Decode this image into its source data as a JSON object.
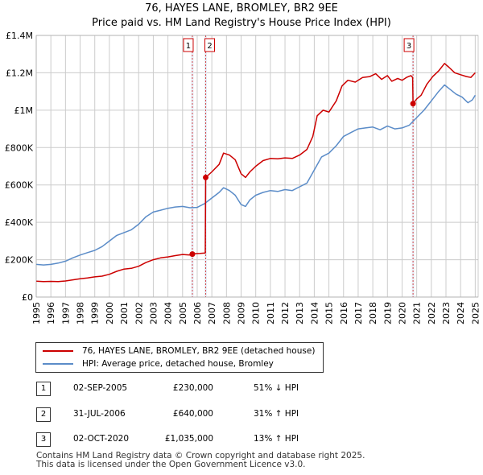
{
  "chart_data": {
    "type": "line",
    "title": "76, HAYES LANE, BROMLEY, BR2 9EE",
    "subtitle": "Price paid vs. HM Land Registry's House Price Index (HPI)",
    "xlim": [
      1995,
      2025.2
    ],
    "ylim": [
      0,
      1400000
    ],
    "x_ticks": [
      "1995",
      "1996",
      "1997",
      "1998",
      "1999",
      "2000",
      "2001",
      "2002",
      "2003",
      "2004",
      "2005",
      "2006",
      "2007",
      "2008",
      "2009",
      "2010",
      "2011",
      "2012",
      "2013",
      "2014",
      "2015",
      "2016",
      "2017",
      "2018",
      "2019",
      "2020",
      "2021",
      "2022",
      "2023",
      "2024",
      "2025"
    ],
    "y_ticks": [
      {
        "value": 0,
        "label": "£0"
      },
      {
        "value": 200000,
        "label": "£200K"
      },
      {
        "value": 400000,
        "label": "£400K"
      },
      {
        "value": 600000,
        "label": "£600K"
      },
      {
        "value": 800000,
        "label": "£800K"
      },
      {
        "value": 1000000,
        "label": "£1M"
      },
      {
        "value": 1200000,
        "label": "£1.2M"
      },
      {
        "value": 1400000,
        "label": "£1.4M"
      }
    ],
    "series": [
      {
        "name": "76, HAYES LANE, BROMLEY, BR2 9EE (detached house)",
        "color": "#cc0000",
        "points": [
          [
            1995.0,
            85000
          ],
          [
            1995.5,
            83000
          ],
          [
            1996.0,
            84000
          ],
          [
            1996.5,
            83000
          ],
          [
            1997.0,
            86000
          ],
          [
            1997.5,
            92000
          ],
          [
            1998.0,
            98000
          ],
          [
            1998.5,
            102000
          ],
          [
            1999.0,
            108000
          ],
          [
            1999.5,
            112000
          ],
          [
            2000.0,
            122000
          ],
          [
            2000.5,
            138000
          ],
          [
            2001.0,
            150000
          ],
          [
            2001.5,
            154000
          ],
          [
            2002.0,
            165000
          ],
          [
            2002.5,
            185000
          ],
          [
            2003.0,
            200000
          ],
          [
            2003.5,
            210000
          ],
          [
            2004.0,
            215000
          ],
          [
            2004.5,
            222000
          ],
          [
            2005.0,
            228000
          ],
          [
            2005.5,
            225000
          ],
          [
            2005.67,
            230000
          ],
          [
            2005.8,
            232000
          ],
          [
            2006.2,
            234000
          ],
          [
            2006.55,
            236000
          ],
          [
            2006.58,
            640000
          ],
          [
            2007.0,
            670000
          ],
          [
            2007.5,
            710000
          ],
          [
            2007.8,
            770000
          ],
          [
            2008.2,
            760000
          ],
          [
            2008.6,
            735000
          ],
          [
            2009.0,
            660000
          ],
          [
            2009.3,
            640000
          ],
          [
            2009.6,
            670000
          ],
          [
            2010.0,
            700000
          ],
          [
            2010.5,
            730000
          ],
          [
            2011.0,
            742000
          ],
          [
            2011.5,
            740000
          ],
          [
            2012.0,
            745000
          ],
          [
            2012.5,
            742000
          ],
          [
            2013.0,
            760000
          ],
          [
            2013.5,
            790000
          ],
          [
            2013.9,
            860000
          ],
          [
            2014.2,
            970000
          ],
          [
            2014.6,
            1000000
          ],
          [
            2015.0,
            990000
          ],
          [
            2015.5,
            1050000
          ],
          [
            2015.9,
            1130000
          ],
          [
            2016.3,
            1160000
          ],
          [
            2016.8,
            1150000
          ],
          [
            2017.3,
            1175000
          ],
          [
            2017.8,
            1180000
          ],
          [
            2018.2,
            1195000
          ],
          [
            2018.6,
            1165000
          ],
          [
            2019.0,
            1185000
          ],
          [
            2019.3,
            1155000
          ],
          [
            2019.7,
            1170000
          ],
          [
            2020.0,
            1160000
          ],
          [
            2020.3,
            1175000
          ],
          [
            2020.6,
            1185000
          ],
          [
            2020.72,
            1175000
          ],
          [
            2020.75,
            1035000
          ],
          [
            2021.0,
            1060000
          ],
          [
            2021.3,
            1080000
          ],
          [
            2021.7,
            1140000
          ],
          [
            2022.1,
            1180000
          ],
          [
            2022.5,
            1210000
          ],
          [
            2022.9,
            1250000
          ],
          [
            2023.2,
            1230000
          ],
          [
            2023.6,
            1200000
          ],
          [
            2024.0,
            1190000
          ],
          [
            2024.4,
            1180000
          ],
          [
            2024.7,
            1175000
          ],
          [
            2025.0,
            1200000
          ]
        ]
      },
      {
        "name": "HPI: Average price, detached house, Bromley",
        "color": "#5b8cc8",
        "points": [
          [
            1995.0,
            175000
          ],
          [
            1995.5,
            172000
          ],
          [
            1996.0,
            175000
          ],
          [
            1996.5,
            182000
          ],
          [
            1997.0,
            192000
          ],
          [
            1997.5,
            210000
          ],
          [
            1998.0,
            225000
          ],
          [
            1998.5,
            238000
          ],
          [
            1999.0,
            250000
          ],
          [
            1999.5,
            270000
          ],
          [
            2000.0,
            300000
          ],
          [
            2000.5,
            330000
          ],
          [
            2001.0,
            345000
          ],
          [
            2001.5,
            360000
          ],
          [
            2002.0,
            390000
          ],
          [
            2002.5,
            430000
          ],
          [
            2003.0,
            455000
          ],
          [
            2003.5,
            465000
          ],
          [
            2004.0,
            475000
          ],
          [
            2004.5,
            482000
          ],
          [
            2005.0,
            485000
          ],
          [
            2005.5,
            478000
          ],
          [
            2006.0,
            480000
          ],
          [
            2006.5,
            500000
          ],
          [
            2007.0,
            530000
          ],
          [
            2007.5,
            560000
          ],
          [
            2007.8,
            585000
          ],
          [
            2008.2,
            570000
          ],
          [
            2008.6,
            545000
          ],
          [
            2009.0,
            495000
          ],
          [
            2009.3,
            485000
          ],
          [
            2009.6,
            520000
          ],
          [
            2010.0,
            545000
          ],
          [
            2010.5,
            560000
          ],
          [
            2011.0,
            570000
          ],
          [
            2011.5,
            565000
          ],
          [
            2012.0,
            575000
          ],
          [
            2012.5,
            570000
          ],
          [
            2013.0,
            590000
          ],
          [
            2013.5,
            610000
          ],
          [
            2014.0,
            680000
          ],
          [
            2014.5,
            750000
          ],
          [
            2015.0,
            770000
          ],
          [
            2015.5,
            810000
          ],
          [
            2016.0,
            860000
          ],
          [
            2016.5,
            880000
          ],
          [
            2017.0,
            900000
          ],
          [
            2017.5,
            905000
          ],
          [
            2018.0,
            910000
          ],
          [
            2018.5,
            895000
          ],
          [
            2019.0,
            915000
          ],
          [
            2019.5,
            900000
          ],
          [
            2020.0,
            905000
          ],
          [
            2020.5,
            920000
          ],
          [
            2021.0,
            960000
          ],
          [
            2021.5,
            1000000
          ],
          [
            2022.0,
            1050000
          ],
          [
            2022.5,
            1100000
          ],
          [
            2022.9,
            1135000
          ],
          [
            2023.3,
            1110000
          ],
          [
            2023.7,
            1085000
          ],
          [
            2024.1,
            1070000
          ],
          [
            2024.5,
            1040000
          ],
          [
            2024.8,
            1055000
          ],
          [
            2025.0,
            1080000
          ]
        ]
      }
    ],
    "markers": [
      {
        "id": "1",
        "x": 2005.67,
        "y": 230000
      },
      {
        "id": "2",
        "x": 2006.58,
        "y": 640000
      },
      {
        "id": "3",
        "x": 2020.75,
        "y": 1035000
      }
    ],
    "legend": [
      {
        "label": "76, HAYES LANE, BROMLEY, BR2 9EE (detached house)",
        "color": "#cc0000"
      },
      {
        "label": "HPI: Average price, detached house, Bromley",
        "color": "#5b8cc8"
      }
    ],
    "colors": {
      "grid": "#cccccc",
      "plot_bg": "#e8eef7",
      "marker_line": "#cc0000"
    }
  },
  "transactions": [
    {
      "num": "1",
      "date": "02-SEP-2005",
      "price": "£230,000",
      "hpi": "51% ↓ HPI"
    },
    {
      "num": "2",
      "date": "31-JUL-2006",
      "price": "£640,000",
      "hpi": "31% ↑ HPI"
    },
    {
      "num": "3",
      "date": "02-OCT-2020",
      "price": "£1,035,000",
      "hpi": "13% ↑ HPI"
    }
  ],
  "footer": {
    "line1": "Contains HM Land Registry data © Crown copyright and database right 2025.",
    "line2": "This data is licensed under the Open Government Licence v3.0."
  }
}
